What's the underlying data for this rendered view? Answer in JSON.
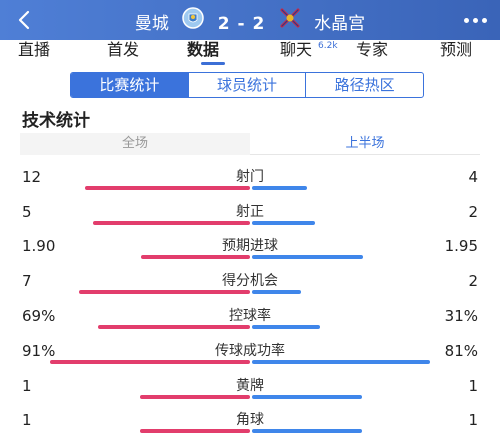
{
  "colors": {
    "header_bg": "#4a78d0",
    "home_bar": "#e23d6c",
    "away_bar": "#3f86ea",
    "accent": "#3b73dc"
  },
  "header": {
    "back_icon": "chevron-left-icon",
    "home_team": "曼城",
    "score": "2 - 2",
    "away_team": "水晶宫",
    "more_icon": "more-dots-icon"
  },
  "tabs": [
    {
      "label": "直播"
    },
    {
      "label": "首发"
    },
    {
      "label": "数据"
    },
    {
      "label": "聊天"
    },
    {
      "label": "专家"
    },
    {
      "label": "预测"
    }
  ],
  "chat_badge": "6.2k",
  "active_tab": "数据",
  "segments": [
    {
      "label": "比赛统计"
    },
    {
      "label": "球员统计"
    },
    {
      "label": "路径热区"
    }
  ],
  "section_title": "技术统计",
  "periods": [
    {
      "label": "全场"
    },
    {
      "label": "上半场"
    }
  ],
  "stats": [
    {
      "label": "射门",
      "home": "12",
      "away": "4",
      "home_share": 0.75,
      "away_share": 0.25
    },
    {
      "label": "射正",
      "home": "5",
      "away": "2",
      "home_share": 0.714,
      "away_share": 0.286
    },
    {
      "label": "预期进球",
      "home": "1.90",
      "away": "1.95",
      "home_share": 0.494,
      "away_share": 0.506
    },
    {
      "label": "得分机会",
      "home": "7",
      "away": "2",
      "home_share": 0.778,
      "away_share": 0.222
    },
    {
      "label": "控球率",
      "home": "69%",
      "away": "31%",
      "home_share": 0.69,
      "away_share": 0.31
    },
    {
      "label": "传球成功率",
      "home": "91%",
      "away": "81%",
      "home_share": 0.91,
      "away_share": 0.81
    },
    {
      "label": "黄牌",
      "home": "1",
      "away": "1",
      "home_share": 0.5,
      "away_share": 0.5
    },
    {
      "label": "角球",
      "home": "1",
      "away": "1",
      "home_share": 0.5,
      "away_share": 0.5
    }
  ]
}
